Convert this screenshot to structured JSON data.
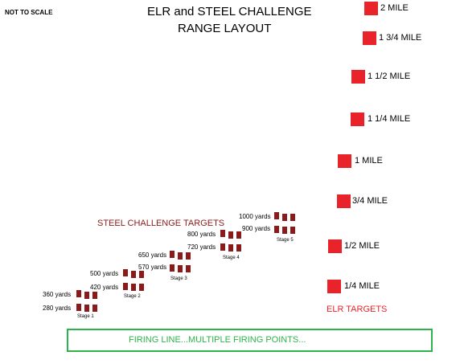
{
  "not_to_scale": "NOT TO SCALE",
  "title": [
    "ELR and STEEL CHALLENGE",
    "RANGE LAYOUT"
  ],
  "elr": {
    "heading": "ELR TARGETS",
    "targets": [
      "2 MILE",
      "1 3/4 MILE",
      "1 1/2 MILE",
      "1 1/4 MILE",
      "1 MILE",
      "3/4 MILE",
      "1/2 MILE",
      "1/4 MILE"
    ]
  },
  "steel": {
    "heading": "STEEL CHALLENGE TARGETS",
    "stages": [
      {
        "label": "Stage 1",
        "yards": [
          "360 yards",
          "280 yards"
        ]
      },
      {
        "label": "Stage 2",
        "yards": [
          "500 yards",
          "420 yards"
        ]
      },
      {
        "label": "Stage 3",
        "yards": [
          "650 yards",
          "570 yards"
        ]
      },
      {
        "label": "Stage 4",
        "yards": [
          "800 yards",
          "720 yards"
        ]
      },
      {
        "label": "Stage 5",
        "yards": [
          "1000 yards",
          "900 yards"
        ]
      }
    ]
  },
  "firing_line": "FIRING LINE...MULTIPLE FIRING POINTS...",
  "colors": {
    "elr": "#e8242a",
    "steel": "#8b1a1a",
    "firing_line": "#2db34a"
  }
}
